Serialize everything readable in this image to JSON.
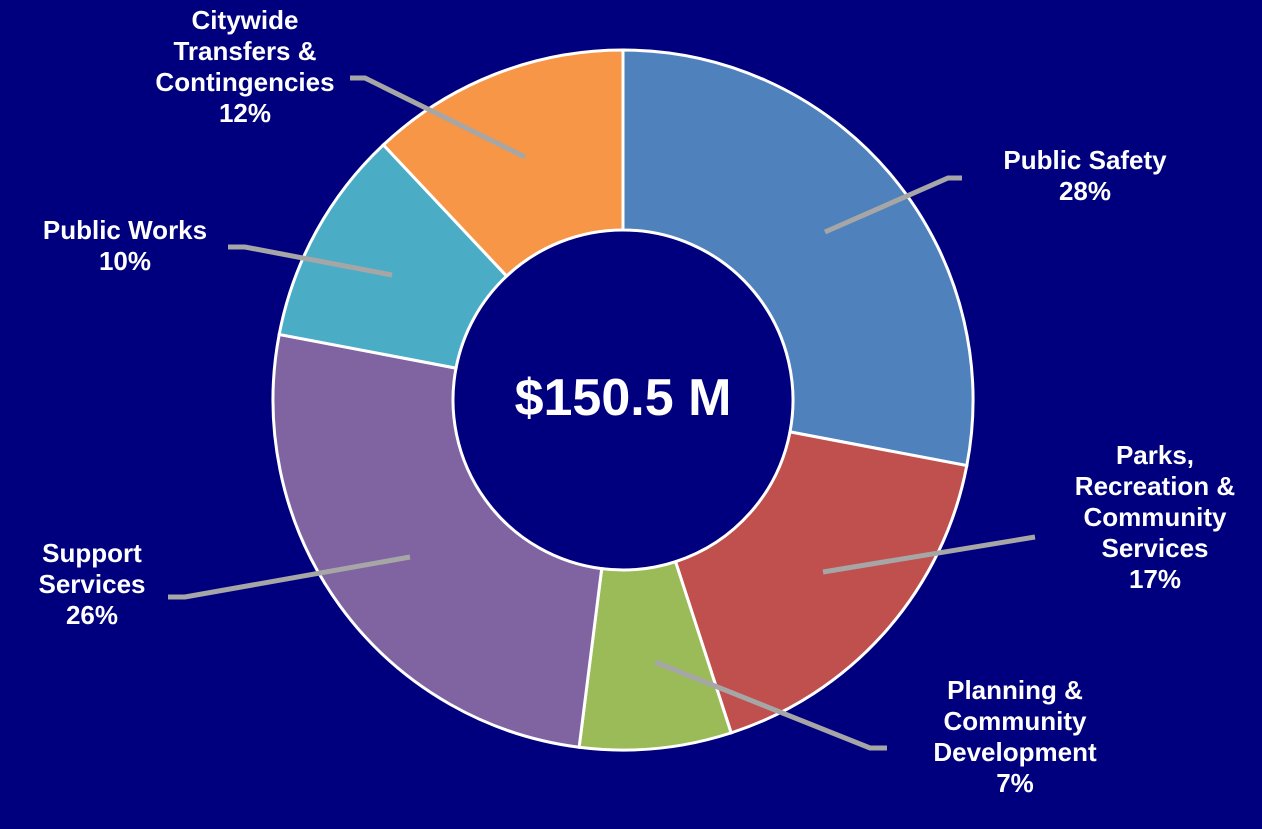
{
  "chart_data": {
    "type": "donut",
    "center_label": "$150.5 M",
    "categories": [
      "Public Safety",
      "Parks, Recreation & Community Services",
      "Planning & Community Development",
      "Support Services",
      "Public Works",
      "Citywide Transfers & Contingencies"
    ],
    "values": [
      28,
      17,
      7,
      26,
      10,
      12
    ],
    "value_labels": [
      "28%",
      "17%",
      "7%",
      "26%",
      "10%",
      "12%"
    ],
    "colors": [
      "#4f81bd",
      "#c0504d",
      "#9bbb59",
      "#8064a2",
      "#4bacc6",
      "#f79646"
    ]
  }
}
